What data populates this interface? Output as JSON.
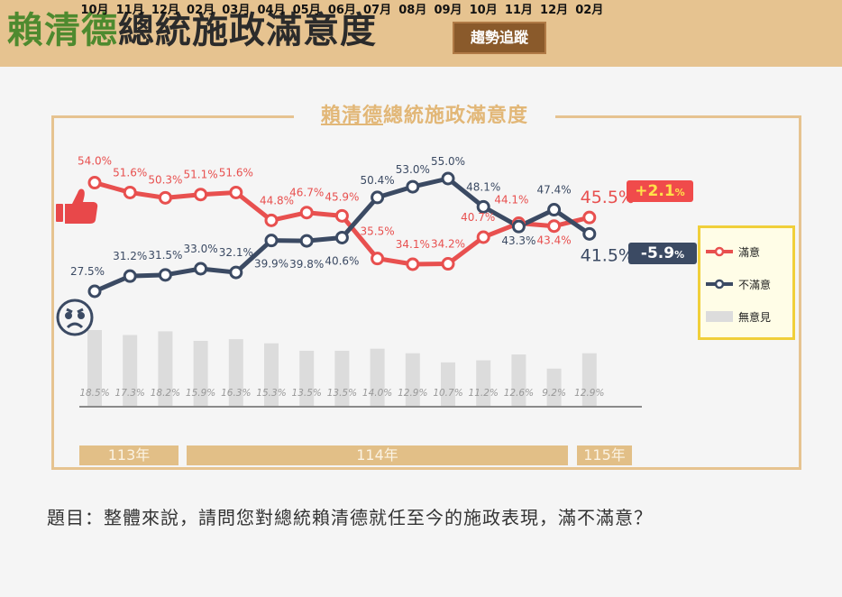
{
  "header": {
    "title_highlight": "賴清德",
    "title_rest": "總統施政滿意度",
    "badge": "趨勢追蹤"
  },
  "chart_title": {
    "underlined": "賴清德",
    "rest": "總統施政滿意度"
  },
  "colors": {
    "satisfied": "#e8504f",
    "dissatisfied": "#3b4a63",
    "no_opinion": "#dcdcdc",
    "frame": "#e6c390",
    "header_bg": "#e6c390",
    "title_green": "#4e8a2f"
  },
  "icons": {
    "satisfied": "thumbs-up-icon",
    "dissatisfied": "angry-face-icon"
  },
  "deltas": {
    "satisfied": {
      "value": "+2.1",
      "unit": "%"
    },
    "dissatisfied": {
      "value": "-5.9",
      "unit": "%"
    }
  },
  "legend": [
    {
      "label": "滿意"
    },
    {
      "label": "不滿意"
    },
    {
      "label": "無意見"
    }
  ],
  "months": [
    "10月",
    "11月",
    "12月",
    "02月",
    "03月",
    "04月",
    "05月",
    "06月",
    "07月",
    "08月",
    "09月",
    "10月",
    "11月",
    "12月",
    "02月"
  ],
  "years": [
    {
      "label": "113年"
    },
    {
      "label": "114年"
    },
    {
      "label": "115年"
    }
  ],
  "question": "題目：整體來說，請問您對總統賴清德就任至今的施政表現，滿不滿意？",
  "chart_data": {
    "type": "line",
    "title": "賴清德總統施政滿意度",
    "categories": [
      "113/10",
      "113/11",
      "113/12",
      "114/02",
      "114/03",
      "114/04",
      "114/05",
      "114/06",
      "114/07",
      "114/08",
      "114/09",
      "114/10",
      "114/11",
      "114/12",
      "115/02"
    ],
    "series": [
      {
        "name": "滿意",
        "type": "line",
        "values": [
          54.0,
          51.6,
          50.3,
          51.1,
          51.6,
          44.8,
          46.7,
          45.9,
          35.5,
          34.1,
          34.2,
          40.7,
          44.1,
          43.4,
          45.5
        ],
        "labels": [
          "54.0%",
          "51.6%",
          "50.3%",
          "51.1%",
          "51.6%",
          "44.8%",
          "46.7%",
          "45.9%",
          "35.5%",
          "34.1%",
          "34.2%",
          "40.7%",
          "44.1%",
          "43.4%",
          "45.5%"
        ]
      },
      {
        "name": "不滿意",
        "type": "line",
        "values": [
          27.5,
          31.2,
          31.5,
          33.0,
          32.1,
          39.9,
          39.8,
          40.6,
          50.4,
          53.0,
          55.0,
          48.1,
          43.3,
          47.4,
          41.5
        ],
        "labels": [
          "27.5%",
          "31.2%",
          "31.5%",
          "33.0%",
          "32.1%",
          "39.9%",
          "39.8%",
          "40.6%",
          "50.4%",
          "53.0%",
          "55.0%",
          "48.1%",
          "43.3%",
          "47.4%",
          "41.5%"
        ]
      },
      {
        "name": "無意見",
        "type": "bar",
        "values": [
          18.5,
          17.3,
          18.2,
          15.9,
          16.3,
          15.3,
          13.5,
          13.5,
          14.0,
          12.9,
          10.7,
          11.2,
          12.6,
          9.2,
          12.9
        ],
        "labels": [
          "18.5%",
          "17.3%",
          "18.2%",
          "15.9%",
          "16.3%",
          "15.3%",
          "13.5%",
          "13.5%",
          "14.0%",
          "12.9%",
          "10.7%",
          "11.2%",
          "12.6%",
          "9.2%",
          "12.9%"
        ]
      }
    ],
    "annotations": [
      "+2.1%",
      "-5.9%"
    ],
    "year_groups": [
      {
        "label": "113年",
        "months": [
          "10月",
          "11月",
          "12月"
        ]
      },
      {
        "label": "114年",
        "months": [
          "02月",
          "03月",
          "04月",
          "05月",
          "06月",
          "07月",
          "08月",
          "09月",
          "10月",
          "11月",
          "12月"
        ]
      },
      {
        "label": "115年",
        "months": [
          "02月"
        ]
      }
    ],
    "xlabel": "",
    "ylabel": "",
    "grid": false,
    "legend_position": "right"
  }
}
